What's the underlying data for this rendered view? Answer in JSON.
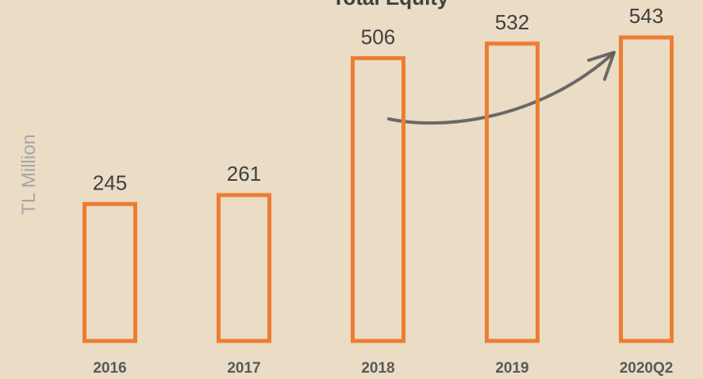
{
  "chart_data": {
    "type": "bar",
    "title": "Total Equity",
    "ylabel": "TL Million",
    "categories": [
      "2016",
      "2017",
      "2018",
      "2019",
      "2020Q2"
    ],
    "values": [
      245,
      261,
      506,
      532,
      543
    ],
    "color": "#ed7d31",
    "ylim": [
      0,
      610
    ]
  }
}
